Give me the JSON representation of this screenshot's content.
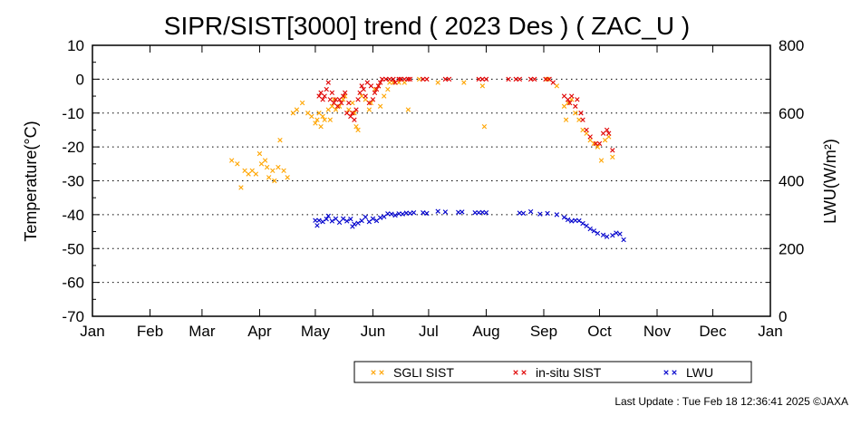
{
  "footer": {
    "last_update": "Last Update : Tue Feb 18 12:36:41 2025  ©JAXA"
  },
  "chart_data": {
    "type": "scatter",
    "title": "SIPR/SIST[3000] trend ( 2023 Des ) ( ZAC_U )",
    "ylabel": "Temperature(°C)",
    "y2label": "LWU(W/m²)",
    "ylim": [
      -70,
      10
    ],
    "y2lim": [
      0,
      800
    ],
    "yticks": [
      10,
      0,
      -10,
      -20,
      -30,
      -40,
      -50,
      -60,
      -70
    ],
    "y2ticks": [
      800,
      600,
      400,
      200,
      0
    ],
    "xticks": [
      "Jan",
      "Feb",
      "Mar",
      "Apr",
      "May",
      "Jun",
      "Jul",
      "Aug",
      "Sep",
      "Oct",
      "Nov",
      "Dec",
      "Jan"
    ],
    "grid": "dotted horizontal",
    "legend": "bottom-right",
    "x_unit": "day of year",
    "series": [
      {
        "name": "SGLI SIST",
        "color": "#ffa500",
        "axis": "left",
        "points": [
          [
            75,
            -24
          ],
          [
            78,
            -25
          ],
          [
            80,
            -32
          ],
          [
            82,
            -27
          ],
          [
            84,
            -28
          ],
          [
            86,
            -27
          ],
          [
            88,
            -28
          ],
          [
            90,
            -22
          ],
          [
            91,
            -25
          ],
          [
            93,
            -24
          ],
          [
            94,
            -26
          ],
          [
            95,
            -29
          ],
          [
            97,
            -27
          ],
          [
            98,
            -30
          ],
          [
            100,
            -26
          ],
          [
            101,
            -18
          ],
          [
            103,
            -27
          ],
          [
            105,
            -29
          ],
          [
            108,
            -10
          ],
          [
            110,
            -9
          ],
          [
            113,
            -7
          ],
          [
            116,
            -10
          ],
          [
            118,
            -11
          ],
          [
            120,
            -13
          ],
          [
            121,
            -12
          ],
          [
            122,
            -10
          ],
          [
            123,
            -14
          ],
          [
            124,
            -11
          ],
          [
            125,
            -12
          ],
          [
            127,
            -9
          ],
          [
            128,
            -12
          ],
          [
            129,
            -8
          ],
          [
            130,
            -6
          ],
          [
            131,
            -9
          ],
          [
            133,
            -8
          ],
          [
            135,
            -6
          ],
          [
            136,
            -5
          ],
          [
            138,
            -9
          ],
          [
            140,
            -7
          ],
          [
            141,
            -10
          ],
          [
            142,
            -14
          ],
          [
            143,
            -15
          ],
          [
            145,
            -5
          ],
          [
            147,
            -6
          ],
          [
            149,
            -9
          ],
          [
            150,
            -7
          ],
          [
            152,
            -3
          ],
          [
            154,
            -2
          ],
          [
            155,
            -8
          ],
          [
            157,
            -5
          ],
          [
            159,
            -3
          ],
          [
            160,
            -1
          ],
          [
            162,
            -1
          ],
          [
            165,
            -1
          ],
          [
            168,
            -1
          ],
          [
            170,
            -9
          ],
          [
            176,
            0
          ],
          [
            186,
            -1
          ],
          [
            200,
            -1
          ],
          [
            210,
            -2
          ],
          [
            211,
            -14
          ],
          [
            245,
            0
          ],
          [
            250,
            -2
          ],
          [
            254,
            -8
          ],
          [
            255,
            -12
          ],
          [
            256,
            -7
          ],
          [
            258,
            -6
          ],
          [
            260,
            -10
          ],
          [
            262,
            -12
          ],
          [
            264,
            -15
          ],
          [
            266,
            -16
          ],
          [
            268,
            -18
          ],
          [
            270,
            -19
          ],
          [
            272,
            -20
          ],
          [
            274,
            -24
          ],
          [
            276,
            -18
          ],
          [
            278,
            -17
          ],
          [
            280,
            -23
          ]
        ]
      },
      {
        "name": "in-situ SIST",
        "color": "#e00000",
        "axis": "left",
        "points": [
          [
            122,
            -5
          ],
          [
            123,
            -4
          ],
          [
            124,
            -6
          ],
          [
            125,
            -5
          ],
          [
            126,
            -3
          ],
          [
            127,
            -1
          ],
          [
            128,
            -6
          ],
          [
            129,
            -4
          ],
          [
            130,
            -7
          ],
          [
            131,
            -6
          ],
          [
            132,
            -8
          ],
          [
            133,
            -6
          ],
          [
            134,
            -7
          ],
          [
            135,
            -5
          ],
          [
            136,
            -4
          ],
          [
            137,
            -10
          ],
          [
            138,
            -7
          ],
          [
            139,
            -11
          ],
          [
            140,
            -10
          ],
          [
            141,
            -12
          ],
          [
            142,
            -9
          ],
          [
            143,
            -6
          ],
          [
            144,
            -4
          ],
          [
            145,
            -2
          ],
          [
            146,
            -3
          ],
          [
            147,
            -5
          ],
          [
            148,
            -1
          ],
          [
            149,
            -7
          ],
          [
            150,
            -2
          ],
          [
            151,
            -6
          ],
          [
            152,
            -4
          ],
          [
            153,
            -3
          ],
          [
            154,
            -2
          ],
          [
            155,
            -1
          ],
          [
            156,
            0
          ],
          [
            158,
            0
          ],
          [
            160,
            0
          ],
          [
            162,
            0
          ],
          [
            163,
            -1
          ],
          [
            165,
            0
          ],
          [
            166,
            0
          ],
          [
            168,
            0
          ],
          [
            170,
            0
          ],
          [
            171,
            0
          ],
          [
            178,
            0
          ],
          [
            180,
            0
          ],
          [
            190,
            0
          ],
          [
            192,
            0
          ],
          [
            208,
            0
          ],
          [
            210,
            0
          ],
          [
            212,
            0
          ],
          [
            224,
            0
          ],
          [
            228,
            0
          ],
          [
            230,
            0
          ],
          [
            236,
            0
          ],
          [
            238,
            0
          ],
          [
            244,
            0
          ],
          [
            246,
            0
          ],
          [
            248,
            -1
          ],
          [
            254,
            -5
          ],
          [
            256,
            -6
          ],
          [
            257,
            -7
          ],
          [
            258,
            -5
          ],
          [
            260,
            -8
          ],
          [
            261,
            -6
          ],
          [
            263,
            -10
          ],
          [
            264,
            -12
          ],
          [
            266,
            -15
          ],
          [
            268,
            -17
          ],
          [
            271,
            -19
          ],
          [
            273,
            -19
          ],
          [
            275,
            -16
          ],
          [
            277,
            -15
          ],
          [
            278,
            -16
          ],
          [
            280,
            -21
          ]
        ]
      },
      {
        "name": "LWU",
        "color": "#0000cc",
        "axis": "right",
        "points": [
          [
            120,
            283
          ],
          [
            121,
            268
          ],
          [
            122,
            283
          ],
          [
            124,
            279
          ],
          [
            126,
            287
          ],
          [
            127,
            296
          ],
          [
            129,
            281
          ],
          [
            131,
            288
          ],
          [
            133,
            277
          ],
          [
            135,
            288
          ],
          [
            137,
            281
          ],
          [
            139,
            287
          ],
          [
            140,
            265
          ],
          [
            141,
            272
          ],
          [
            143,
            275
          ],
          [
            145,
            282
          ],
          [
            147,
            293
          ],
          [
            149,
            279
          ],
          [
            151,
            288
          ],
          [
            153,
            282
          ],
          [
            155,
            291
          ],
          [
            157,
            294
          ],
          [
            159,
            303
          ],
          [
            161,
            302
          ],
          [
            163,
            298
          ],
          [
            165,
            303
          ],
          [
            167,
            302
          ],
          [
            169,
            305
          ],
          [
            171,
            304
          ],
          [
            173,
            306
          ],
          [
            178,
            306
          ],
          [
            180,
            304
          ],
          [
            186,
            310
          ],
          [
            190,
            308
          ],
          [
            197,
            307
          ],
          [
            199,
            308
          ],
          [
            206,
            306
          ],
          [
            208,
            306
          ],
          [
            210,
            307
          ],
          [
            212,
            306
          ],
          [
            230,
            305
          ],
          [
            232,
            304
          ],
          [
            236,
            309
          ],
          [
            241,
            302
          ],
          [
            245,
            304
          ],
          [
            250,
            300
          ],
          [
            254,
            292
          ],
          [
            256,
            285
          ],
          [
            258,
            281
          ],
          [
            260,
            283
          ],
          [
            262,
            282
          ],
          [
            264,
            274
          ],
          [
            266,
            267
          ],
          [
            268,
            258
          ],
          [
            270,
            252
          ],
          [
            272,
            245
          ],
          [
            275,
            240
          ],
          [
            277,
            235
          ],
          [
            280,
            239
          ],
          [
            282,
            246
          ],
          [
            284,
            243
          ],
          [
            286,
            226
          ]
        ]
      }
    ]
  }
}
